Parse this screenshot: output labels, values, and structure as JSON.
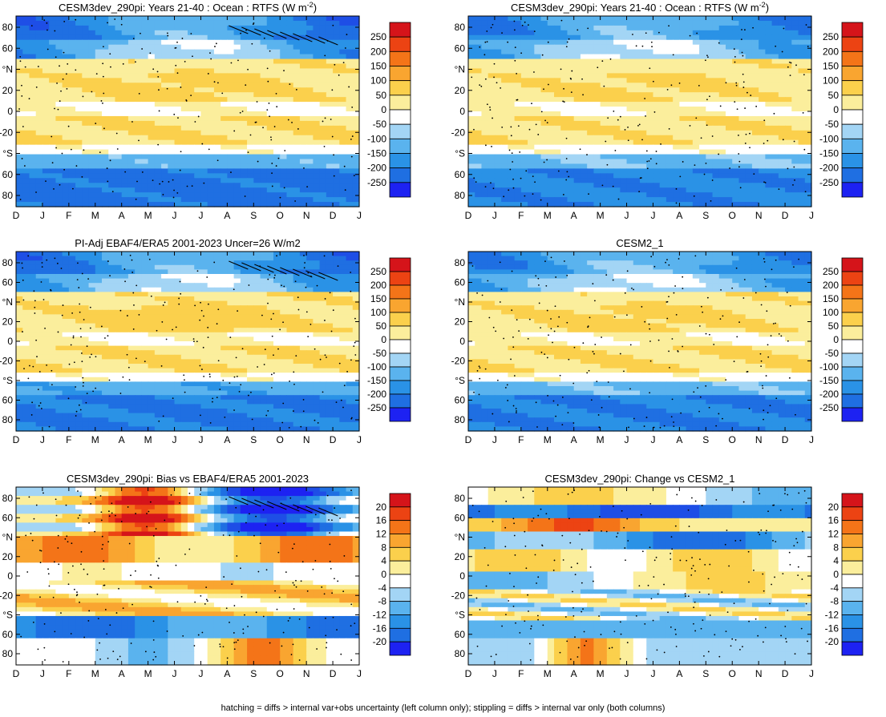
{
  "footnote": "hatching = diffs > internal var+obs uncertainty (left column only); stippling = diffs > internal var only (both columns)",
  "month_ticks": [
    "D",
    "J",
    "F",
    "M",
    "A",
    "M",
    "J",
    "J",
    "A",
    "S",
    "O",
    "N",
    "D",
    "J"
  ],
  "lat_ticks": [
    "80",
    "60",
    "°N",
    "20",
    "0",
    "-20",
    "°S",
    "60",
    "80"
  ],
  "colorbars": {
    "flux": [
      "250",
      "200",
      "150",
      "100",
      "50",
      "0",
      "-50",
      "-100",
      "-150",
      "-200",
      "-250"
    ],
    "diff": [
      "20",
      "16",
      "12",
      "8",
      "4",
      "0",
      "-4",
      "-8",
      "-12",
      "-16",
      "-20"
    ]
  },
  "chart_data": [
    {
      "type": "heatmap",
      "title": "CESM3dev_290pi: Years 21-40 : Ocean : RTFS (W m",
      "title_sup": "-2",
      "title_end": ")",
      "x": "month (D, J ... D, J)",
      "y": "latitude (90S to 90N)",
      "colorbar": "flux",
      "clim": [
        -250,
        250
      ],
      "pattern": {
        "north_polar": -180,
        "north_mid": -120,
        "tropics_north": 80,
        "equator": 15,
        "tropics_south": 60,
        "south_mid": -80,
        "southern_ocean": -160
      },
      "stippling": true,
      "hatching": true
    },
    {
      "type": "heatmap",
      "title": "CESM3dev_290pi: Years 21-40 : Ocean : RTFS (W m",
      "title_sup": "-2",
      "title_end": ")",
      "x": "month",
      "y": "latitude",
      "colorbar": "flux",
      "clim": [
        -250,
        250
      ],
      "pattern": {
        "north_polar": -160,
        "north_mid": -100,
        "tropics_north": 75,
        "equator": 20,
        "tropics_south": 55,
        "south_mid": -70,
        "southern_ocean": -140
      },
      "stippling": true,
      "hatching": false
    },
    {
      "type": "heatmap",
      "title": "PI-Adj EBAF4/ERA5 2001-2023 Uncer=26 W/m2",
      "x": "month",
      "y": "latitude",
      "colorbar": "flux",
      "clim": [
        -250,
        250
      ],
      "pattern": {
        "north_polar": -175,
        "north_mid": -115,
        "tropics_north": 85,
        "equator": 20,
        "tropics_south": 60,
        "south_mid": -90,
        "southern_ocean": -150
      },
      "stippling": true,
      "hatching": true
    },
    {
      "type": "heatmap",
      "title": "CESM2_1",
      "x": "month",
      "y": "latitude",
      "colorbar": "flux",
      "clim": [
        -250,
        250
      ],
      "pattern": {
        "north_polar": -155,
        "north_mid": -95,
        "tropics_north": 80,
        "equator": 25,
        "tropics_south": 60,
        "south_mid": -75,
        "southern_ocean": -145
      },
      "stippling": true,
      "hatching": false
    },
    {
      "type": "heatmap",
      "title": "CESM3dev_290pi: Bias vs EBAF4/ERA5 2001-2023",
      "x": "month",
      "y": "latitude",
      "colorbar": "diff",
      "clim": [
        -20,
        20
      ],
      "pattern": {
        "boreal_summer_north": 18,
        "boreal_autumn_north": -20,
        "tropics": 6,
        "south_mid": -10,
        "southern_ocean_autumn": 14
      },
      "stippling": true,
      "hatching": true
    },
    {
      "type": "heatmap",
      "title": "CESM3dev_290pi: Change vs CESM2_1",
      "x": "month",
      "y": "latitude",
      "colorbar": "diff",
      "clim": [
        -20,
        20
      ],
      "pattern": {
        "north_band_60N": -14,
        "north_band_40N": 12,
        "tropics": 4,
        "south_band": -8,
        "southern_ocean_autumn": 16
      },
      "stippling": true,
      "hatching": false
    }
  ]
}
